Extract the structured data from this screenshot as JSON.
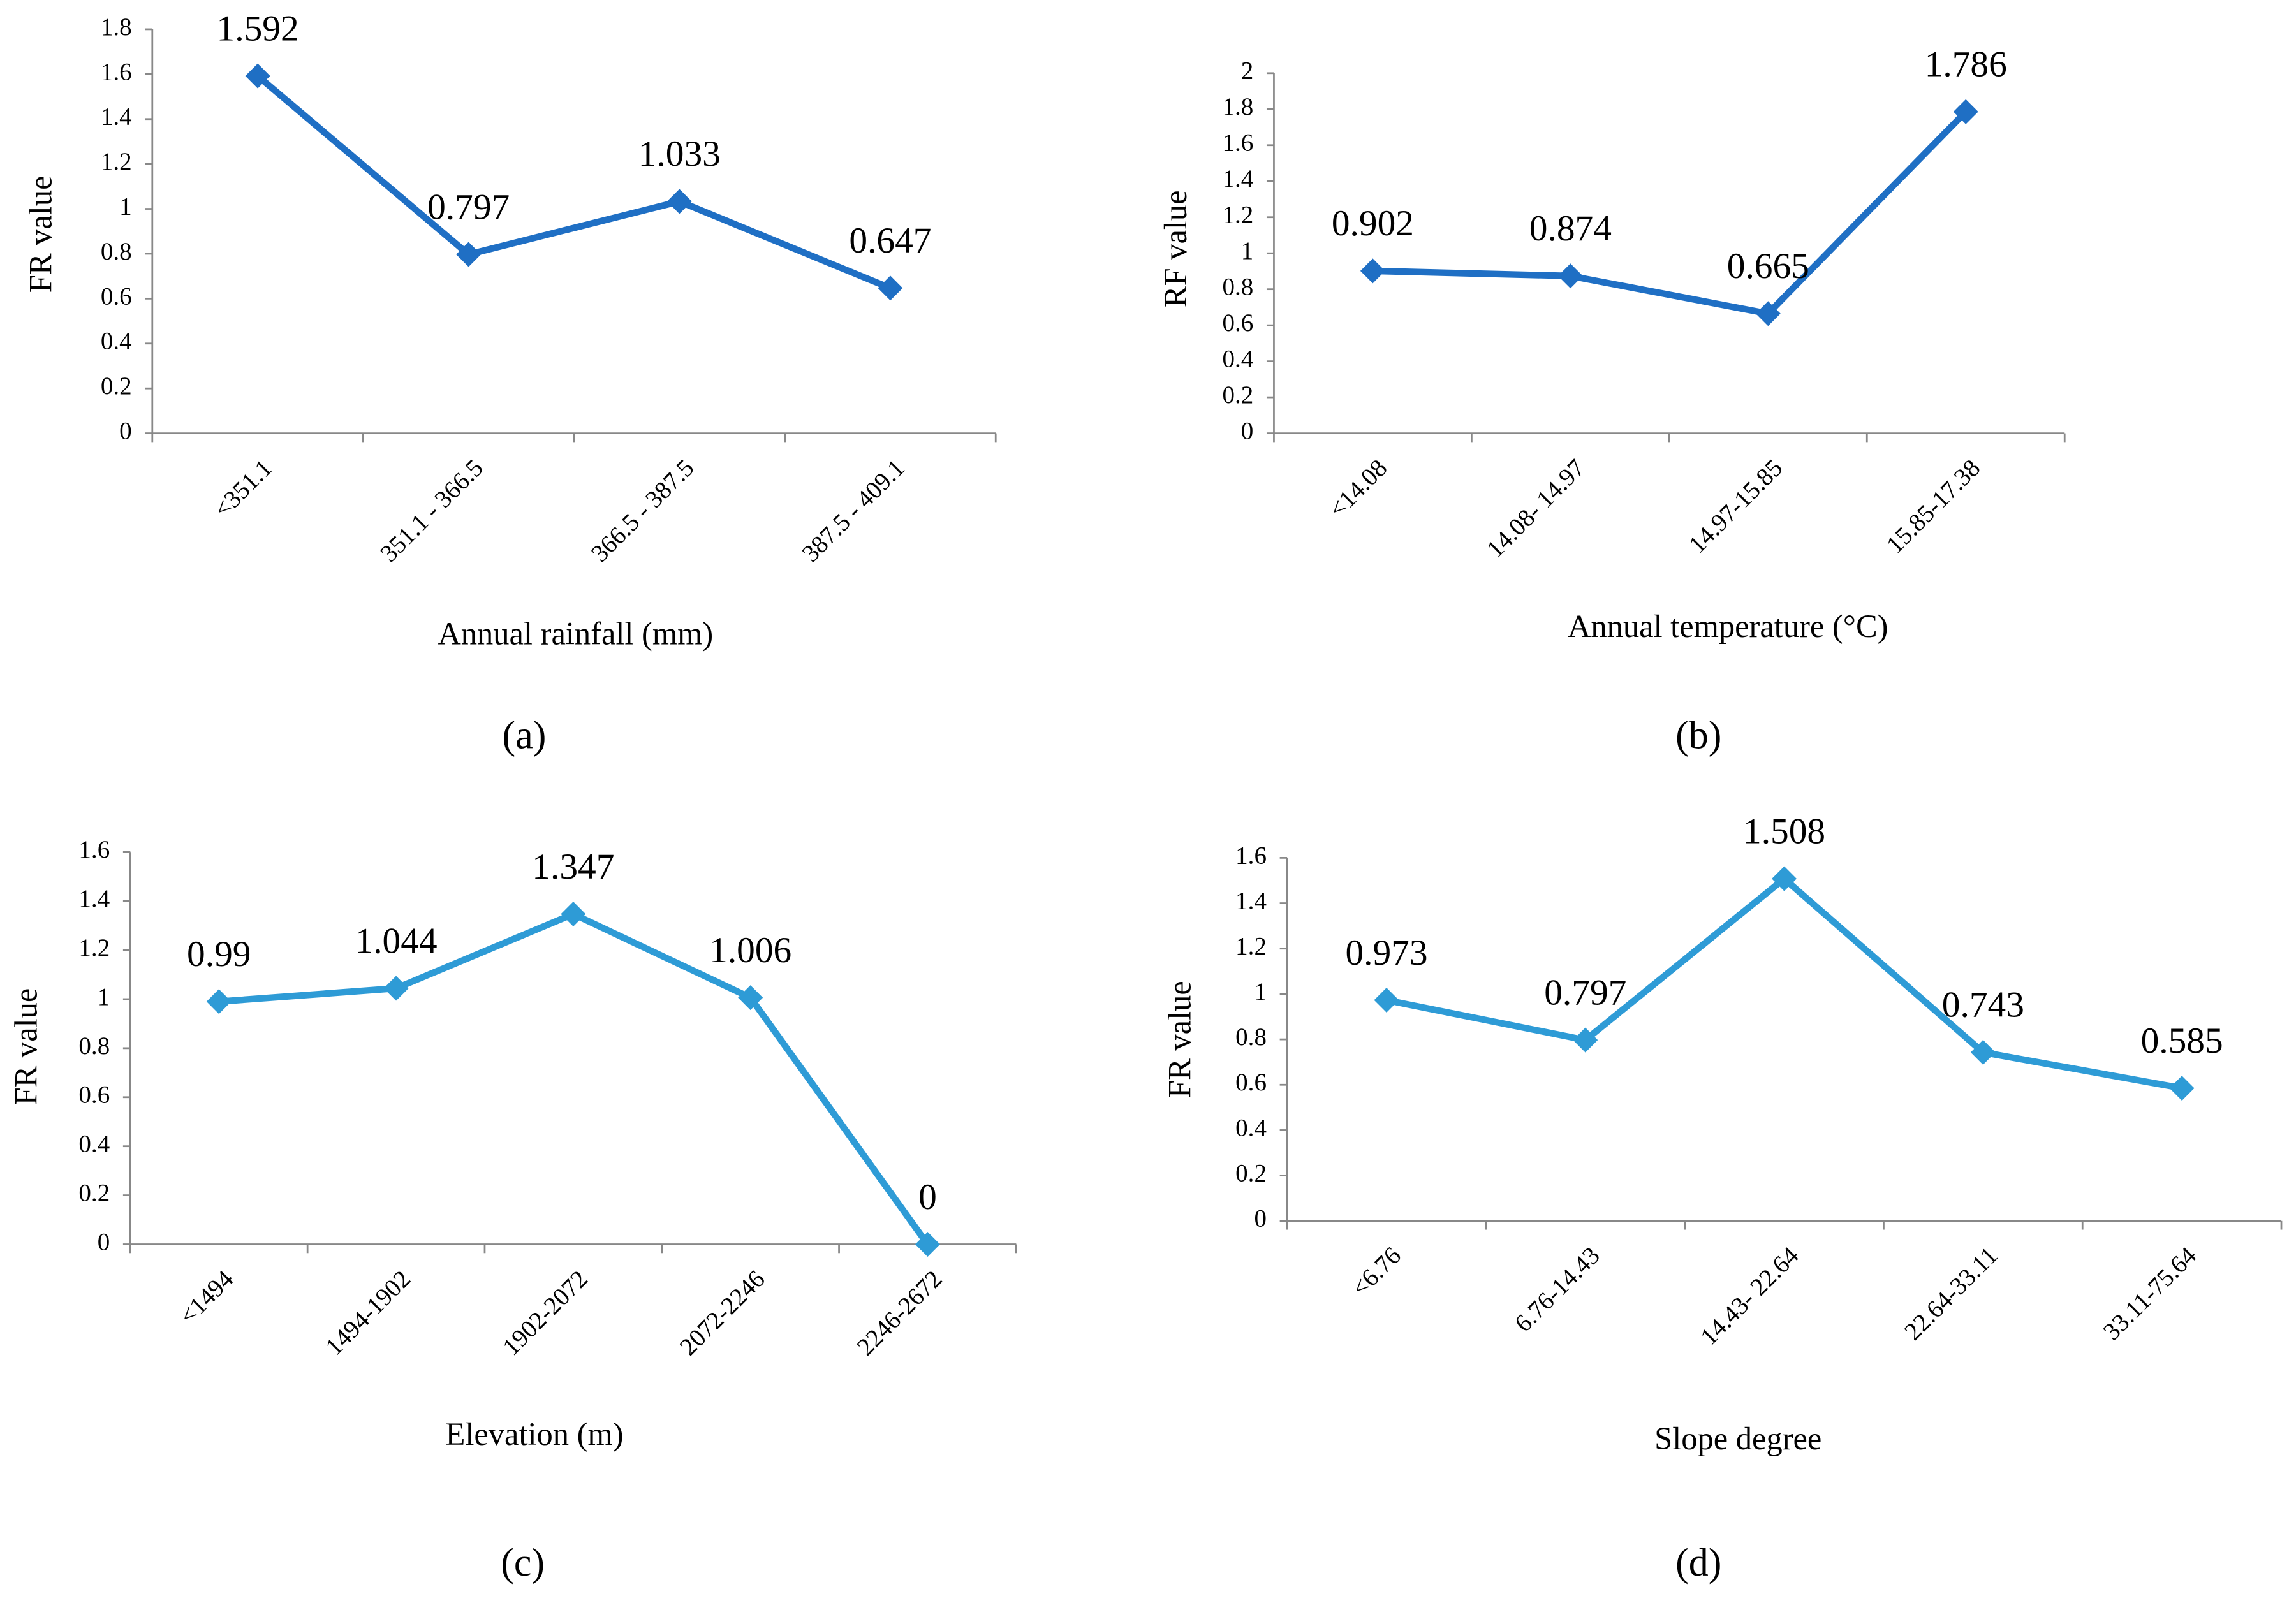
{
  "chart_data": [
    {
      "type": "line",
      "panel": "(a)",
      "y_label": "FR value",
      "x_label": "Annual rainfall (mm)",
      "categories": [
        "<351.1",
        "351.1 - 366.5",
        "366.5 - 387.5",
        "387.5 - 409.1"
      ],
      "values": [
        1.592,
        0.797,
        1.033,
        0.647
      ],
      "color": "#1f6fc4",
      "ylim": [
        0,
        1.8
      ],
      "yticks": [
        0,
        0.2,
        0.4,
        0.6,
        0.8,
        1,
        1.2,
        1.4,
        1.6,
        1.8
      ]
    },
    {
      "type": "line",
      "panel": "(b)",
      "y_label": "RF value",
      "x_label": "Annual temperature (°C)",
      "categories": [
        "<14.08",
        "14.08- 14.97",
        "14.97-15.85",
        "15.85-17.38"
      ],
      "values": [
        0.902,
        0.874,
        0.665,
        1.786
      ],
      "color": "#1f6fc4",
      "ylim": [
        0,
        2
      ],
      "yticks": [
        0,
        0.2,
        0.4,
        0.6,
        0.8,
        1,
        1.2,
        1.4,
        1.6,
        1.8,
        2
      ]
    },
    {
      "type": "line",
      "panel": "(c)",
      "y_label": "FR value",
      "x_label": "Elevation (m)",
      "categories": [
        "<1494",
        "1494-1902",
        "1902-2072",
        "2072-2246",
        "2246-2672"
      ],
      "values": [
        0.99,
        1.044,
        1.347,
        1.006,
        0
      ],
      "color": "#2e9bd6",
      "ylim": [
        0,
        1.6
      ],
      "yticks": [
        0,
        0.2,
        0.4,
        0.6,
        0.8,
        1,
        1.2,
        1.4,
        1.6
      ]
    },
    {
      "type": "line",
      "panel": "(d)",
      "y_label": "FR value",
      "x_label": "Slope degree",
      "categories": [
        "<6.76",
        "6.76-14.43",
        "14.43- 22.64",
        "22.64-33.11",
        "33.11-75.64"
      ],
      "values": [
        0.973,
        0.797,
        1.508,
        0.743,
        0.585
      ],
      "color": "#2e9bd6",
      "ylim": [
        0,
        1.6
      ],
      "yticks": [
        0,
        0.2,
        0.4,
        0.6,
        0.8,
        1,
        1.2,
        1.4,
        1.6
      ]
    }
  ]
}
